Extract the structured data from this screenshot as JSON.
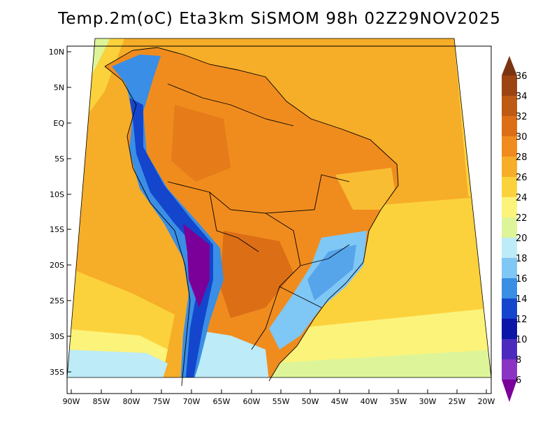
{
  "title": "Temp.2m(oC) Eta3km SiSMOM 98h 02Z29NOV2025",
  "lat_labels": [
    "10N",
    "5N",
    "EQ",
    "5S",
    "10S",
    "15S",
    "20S",
    "25S",
    "30S",
    "35S"
  ],
  "lon_labels": [
    "90W",
    "85W",
    "80W",
    "75W",
    "70W",
    "65W",
    "60W",
    "55W",
    "50W",
    "45W",
    "40W",
    "35W",
    "30W",
    "25W",
    "20W"
  ],
  "colorbar": {
    "labels": [
      "36",
      "34",
      "32",
      "30",
      "28",
      "26",
      "24",
      "22",
      "20",
      "18",
      "16",
      "14",
      "12",
      "10",
      "8",
      "6"
    ],
    "colors": [
      "#7b3410",
      "#9c4412",
      "#bd5a14",
      "#dc6e16",
      "#f08c1e",
      "#f6ad28",
      "#fcd23c",
      "#fcf37a",
      "#ddf598",
      "#bdebf7",
      "#7fc7f5",
      "#3a8ee5",
      "#1346cd",
      "#0b15a6",
      "#4a2bbd",
      "#8a34c4",
      "#7a0099"
    ]
  },
  "palette": {
    "ocean_warm": "#f6ad28",
    "ocean_mid": "#fcd23c",
    "ocean_cool": "#fcf37a",
    "land_hot": "#f08c1e",
    "land_very_hot": "#dc6e16",
    "andes_cold": "#7a0099",
    "andes_mid": "#3a8ee5",
    "south_cool": "#bdebf7"
  }
}
